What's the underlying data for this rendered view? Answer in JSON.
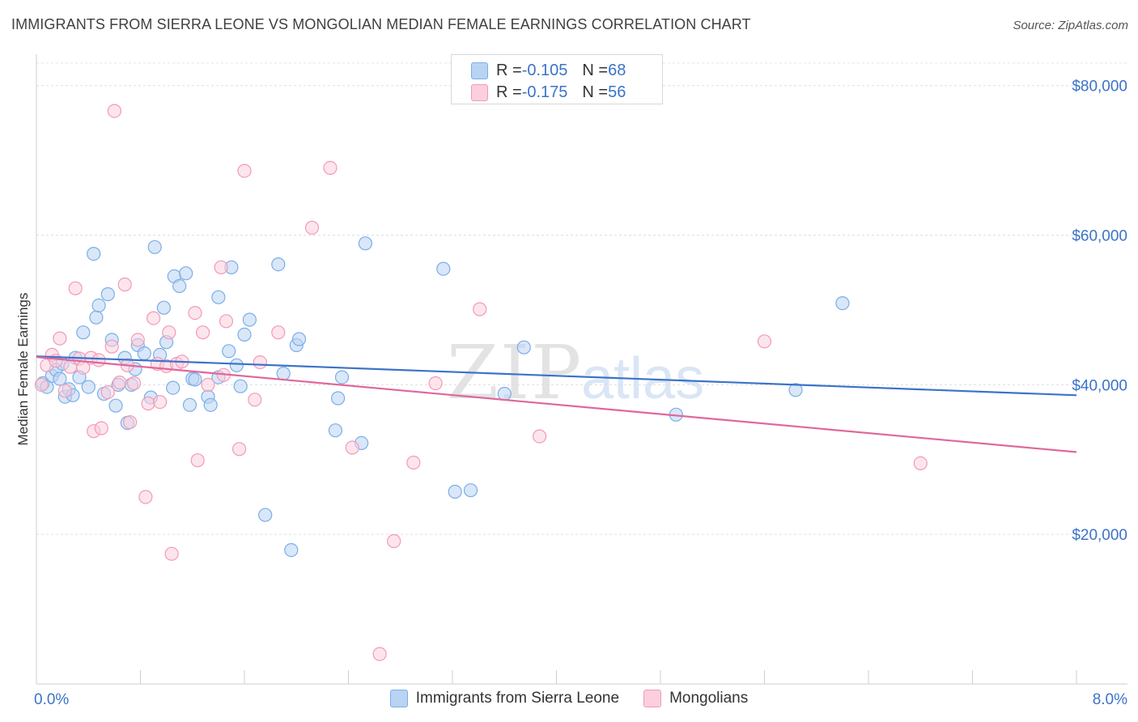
{
  "title": "IMMIGRANTS FROM SIERRA LEONE VS MONGOLIAN MEDIAN FEMALE EARNINGS CORRELATION CHART",
  "source": "Source: ZipAtlas.com",
  "watermark": {
    "zip": "ZIP",
    "atlas": "atlas"
  },
  "stats": [
    {
      "r_label": "R = ",
      "r_value": "-0.105",
      "n_label": "N = ",
      "n_value": "68",
      "color": "#7aaee8",
      "fill": "#b9d3f3"
    },
    {
      "r_label": "R = ",
      "r_value": "-0.175",
      "n_label": "N = ",
      "n_value": "56",
      "color": "#f19ab8",
      "fill": "#fbcfdd"
    }
  ],
  "legend": [
    {
      "label": "Immigrants from Sierra Leone",
      "color": "#7aaee8",
      "fill": "#b9d3f3"
    },
    {
      "label": "Mongolians",
      "color": "#f19ab8",
      "fill": "#fbcfdd"
    }
  ],
  "chart_data": {
    "type": "scatter",
    "title": "IMMIGRANTS FROM SIERRA LEONE VS MONGOLIAN MEDIAN FEMALE EARNINGS CORRELATION CHART",
    "xlabel": "",
    "ylabel": "Median Female Earnings",
    "xlim": [
      0,
      8
    ],
    "ylim": [
      0,
      83000
    ],
    "x_tick_labels": [
      "0.0%",
      "8.0%"
    ],
    "y_ticks": [
      20000,
      40000,
      60000,
      80000
    ],
    "y_tick_labels": [
      "$20,000",
      "$40,000",
      "$60,000",
      "$80,000"
    ],
    "grid": "horizontal dashed",
    "series": [
      {
        "name": "Immigrants from Sierra Leone",
        "color": "#7aaee8",
        "fill": "#b9d3f3",
        "line_color": "#3b73c9",
        "trend": {
          "x": [
            0,
            8
          ],
          "y": [
            43800,
            38600
          ]
        },
        "points": [
          [
            0.05,
            40200
          ],
          [
            0.08,
            39700
          ],
          [
            0.12,
            41200
          ],
          [
            0.15,
            42000
          ],
          [
            0.18,
            40800
          ],
          [
            0.2,
            42800
          ],
          [
            0.22,
            38400
          ],
          [
            0.25,
            39400
          ],
          [
            0.28,
            38600
          ],
          [
            0.3,
            43600
          ],
          [
            0.33,
            41000
          ],
          [
            0.36,
            47000
          ],
          [
            0.4,
            39700
          ],
          [
            0.44,
            57500
          ],
          [
            0.46,
            49000
          ],
          [
            0.48,
            50600
          ],
          [
            0.52,
            38800
          ],
          [
            0.55,
            52100
          ],
          [
            0.58,
            46000
          ],
          [
            0.61,
            37200
          ],
          [
            0.63,
            40000
          ],
          [
            0.68,
            43600
          ],
          [
            0.7,
            34900
          ],
          [
            0.73,
            40000
          ],
          [
            0.76,
            42100
          ],
          [
            0.78,
            45300
          ],
          [
            0.83,
            44200
          ],
          [
            0.88,
            38300
          ],
          [
            0.91,
            58400
          ],
          [
            0.95,
            44000
          ],
          [
            0.98,
            50300
          ],
          [
            1.0,
            45700
          ],
          [
            1.05,
            39600
          ],
          [
            1.06,
            54500
          ],
          [
            1.1,
            53200
          ],
          [
            1.15,
            54900
          ],
          [
            1.18,
            37300
          ],
          [
            1.2,
            40800
          ],
          [
            1.22,
            40700
          ],
          [
            1.32,
            38400
          ],
          [
            1.34,
            37300
          ],
          [
            1.4,
            51700
          ],
          [
            1.48,
            44500
          ],
          [
            1.5,
            55700
          ],
          [
            1.54,
            42600
          ],
          [
            1.57,
            39800
          ],
          [
            1.6,
            46700
          ],
          [
            1.64,
            48700
          ],
          [
            1.76,
            22600
          ],
          [
            1.86,
            56100
          ],
          [
            1.9,
            41500
          ],
          [
            1.96,
            17900
          ],
          [
            2.0,
            45300
          ],
          [
            2.02,
            46100
          ],
          [
            2.3,
            33900
          ],
          [
            2.32,
            38200
          ],
          [
            2.35,
            41000
          ],
          [
            2.5,
            32200
          ],
          [
            2.53,
            58900
          ],
          [
            3.13,
            55500
          ],
          [
            3.22,
            25700
          ],
          [
            3.34,
            25900
          ],
          [
            3.6,
            38800
          ],
          [
            3.75,
            45000
          ],
          [
            4.92,
            36000
          ],
          [
            5.84,
            39300
          ],
          [
            6.2,
            50900
          ],
          [
            1.4,
            41000
          ]
        ]
      },
      {
        "name": "Mongolians",
        "color": "#f19ab8",
        "fill": "#fbcfdd",
        "line_color": "#e0679a",
        "trend": {
          "x": [
            0,
            8
          ],
          "y": [
            43700,
            31000
          ]
        },
        "points": [
          [
            0.04,
            40000
          ],
          [
            0.08,
            42600
          ],
          [
            0.12,
            44000
          ],
          [
            0.15,
            43200
          ],
          [
            0.18,
            46200
          ],
          [
            0.22,
            39200
          ],
          [
            0.26,
            42400
          ],
          [
            0.3,
            52900
          ],
          [
            0.33,
            43500
          ],
          [
            0.36,
            42300
          ],
          [
            0.42,
            43600
          ],
          [
            0.44,
            33800
          ],
          [
            0.48,
            43300
          ],
          [
            0.5,
            34200
          ],
          [
            0.55,
            39000
          ],
          [
            0.58,
            45100
          ],
          [
            0.6,
            76600
          ],
          [
            0.64,
            40300
          ],
          [
            0.68,
            53400
          ],
          [
            0.7,
            42600
          ],
          [
            0.72,
            35000
          ],
          [
            0.75,
            40200
          ],
          [
            0.78,
            46000
          ],
          [
            0.84,
            25000
          ],
          [
            0.86,
            37500
          ],
          [
            0.9,
            48900
          ],
          [
            0.93,
            42800
          ],
          [
            0.95,
            37700
          ],
          [
            1.0,
            42500
          ],
          [
            1.02,
            47000
          ],
          [
            1.04,
            17400
          ],
          [
            1.08,
            42800
          ],
          [
            1.12,
            43100
          ],
          [
            1.22,
            49600
          ],
          [
            1.24,
            29900
          ],
          [
            1.28,
            47000
          ],
          [
            1.32,
            40000
          ],
          [
            1.42,
            55700
          ],
          [
            1.44,
            41300
          ],
          [
            1.46,
            48500
          ],
          [
            1.56,
            31400
          ],
          [
            1.6,
            68600
          ],
          [
            1.68,
            38000
          ],
          [
            1.72,
            43000
          ],
          [
            1.86,
            47000
          ],
          [
            2.12,
            61000
          ],
          [
            2.26,
            69000
          ],
          [
            2.43,
            31600
          ],
          [
            2.64,
            4000
          ],
          [
            2.75,
            19100
          ],
          [
            2.9,
            29600
          ],
          [
            3.07,
            40200
          ],
          [
            3.41,
            50100
          ],
          [
            3.87,
            33100
          ],
          [
            5.6,
            45800
          ],
          [
            6.8,
            29500
          ]
        ]
      }
    ]
  }
}
